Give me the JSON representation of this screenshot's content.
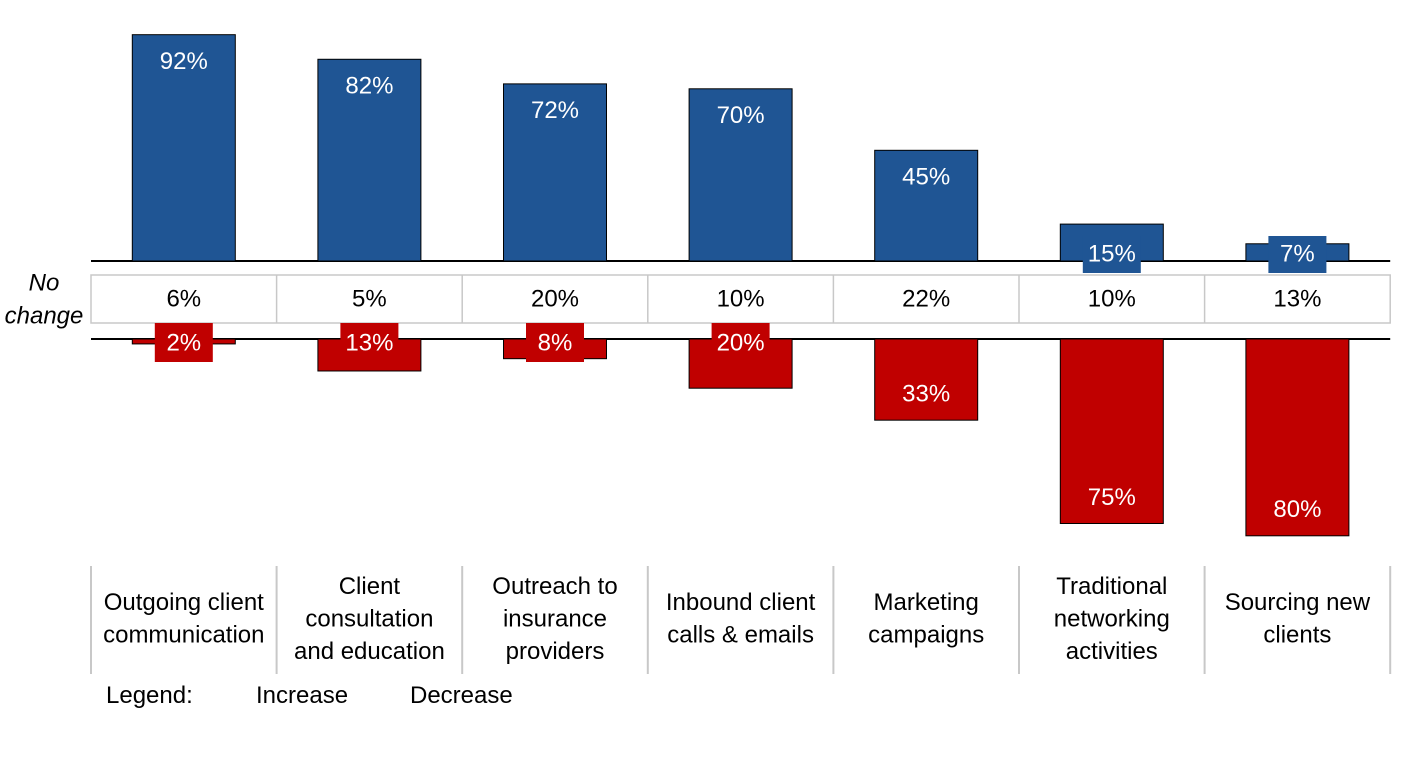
{
  "chart_data": {
    "type": "bar",
    "categories": [
      "Outgoing client communication",
      "Client consultation and education",
      "Outreach to insurance providers",
      "Inbound client calls & emails",
      "Marketing campaigns",
      "Traditional networking activities",
      "Sourcing new clients"
    ],
    "category_lines": [
      [
        "Outgoing client",
        "communication"
      ],
      [
        "Client",
        "consultation",
        "and education"
      ],
      [
        "Outreach to",
        "insurance",
        "providers"
      ],
      [
        "Inbound client",
        "calls & emails"
      ],
      [
        "Marketing",
        "campaigns"
      ],
      [
        "Traditional",
        "networking",
        "activities"
      ],
      [
        "Sourcing new",
        "clients"
      ]
    ],
    "series": [
      {
        "name": "Increase",
        "values": [
          92,
          82,
          72,
          70,
          45,
          15,
          7
        ],
        "color": "#1F5594"
      },
      {
        "name": "Decrease",
        "values": [
          2,
          13,
          8,
          20,
          33,
          75,
          80
        ],
        "color": "#C00000"
      }
    ],
    "no_change": {
      "label_lines": [
        "No",
        "change"
      ],
      "values": [
        6,
        5,
        20,
        10,
        22,
        10,
        13
      ]
    },
    "value_suffix": "%",
    "ylim": [
      0,
      100
    ]
  },
  "legend": {
    "title": "Legend:",
    "increase_label": "Increase",
    "decrease_label": "Decrease"
  }
}
